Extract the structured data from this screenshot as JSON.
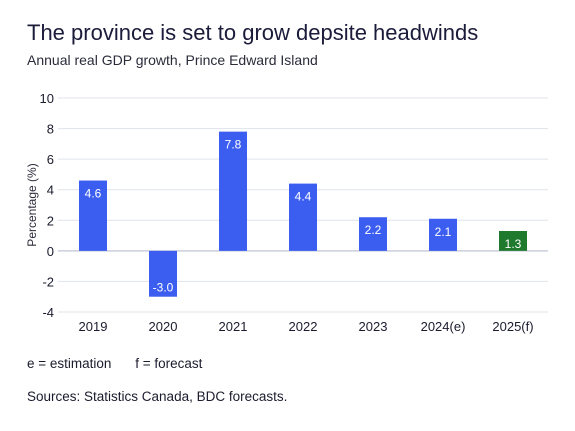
{
  "chart_data": {
    "type": "bar",
    "title": "The province is set to grow depsite headwinds",
    "subtitle": "Annual real GDP growth, Prince Edward Island",
    "ylabel": "Percentage (%)",
    "xlabel": "",
    "ylim": [
      -4,
      10
    ],
    "yticks": [
      10,
      8,
      6,
      4,
      2,
      0,
      -2,
      -4
    ],
    "grid": true,
    "categories": [
      "2019",
      "2020",
      "2021",
      "2022",
      "2023",
      "2024(e)",
      "2025(f)"
    ],
    "values": [
      4.6,
      -3.0,
      7.8,
      4.4,
      2.2,
      2.1,
      1.3
    ],
    "value_labels": [
      "4.6",
      "-3.0",
      "7.8",
      "4.4",
      "2.2",
      "2.1",
      "1.3"
    ],
    "colors": [
      "#3b5ef0",
      "#3b5ef0",
      "#3b5ef0",
      "#3b5ef0",
      "#3b5ef0",
      "#3b5ef0",
      "#1f7a2e"
    ]
  },
  "legend": {
    "estimation": "e = estimation",
    "forecast": "f = forecast"
  },
  "source": "Sources: Statistics Canada, BDC forecasts."
}
